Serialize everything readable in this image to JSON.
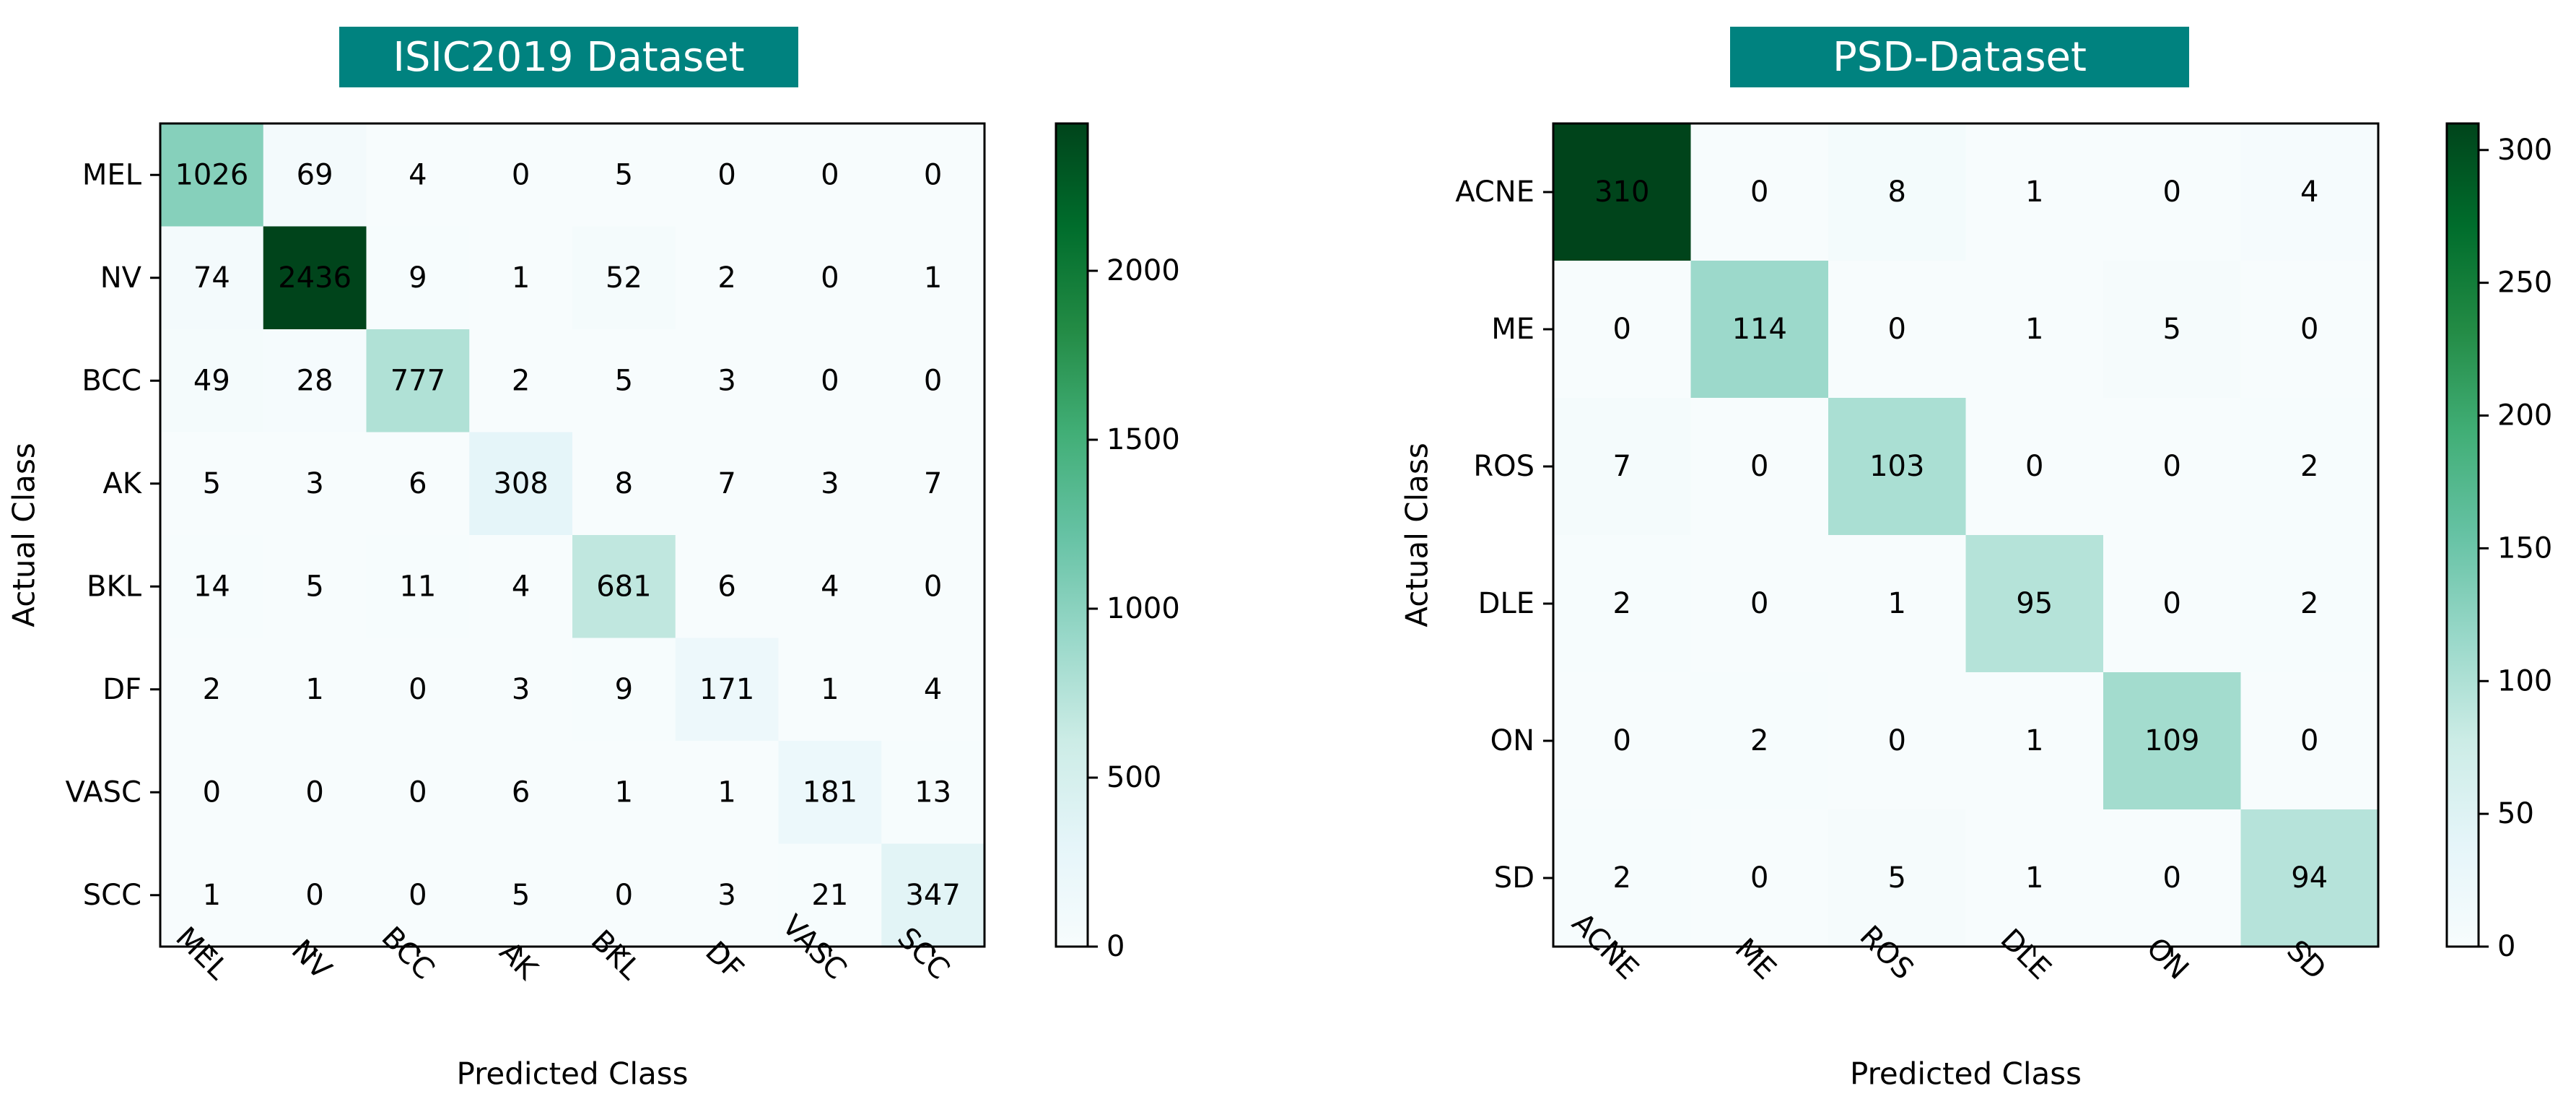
{
  "chart_data": [
    {
      "type": "heatmap",
      "title": "ISIC2019 Dataset",
      "xlabel": "Predicted Class",
      "ylabel": "Actual Class",
      "categories": [
        "MEL",
        "NV",
        "BCC",
        "AK",
        "BKL",
        "DF",
        "VASC",
        "SCC"
      ],
      "matrix": [
        [
          1026,
          69,
          4,
          0,
          5,
          0,
          0,
          0
        ],
        [
          74,
          2436,
          9,
          1,
          52,
          2,
          0,
          1
        ],
        [
          49,
          28,
          777,
          2,
          5,
          3,
          0,
          0
        ],
        [
          5,
          3,
          6,
          308,
          8,
          7,
          3,
          7
        ],
        [
          14,
          5,
          11,
          4,
          681,
          6,
          4,
          0
        ],
        [
          2,
          1,
          0,
          3,
          9,
          171,
          1,
          4
        ],
        [
          0,
          0,
          0,
          6,
          1,
          1,
          181,
          13
        ],
        [
          1,
          0,
          0,
          5,
          0,
          3,
          21,
          347
        ]
      ],
      "vmax": 2436,
      "colorbar_ticks": [
        0,
        500,
        1000,
        1500,
        2000
      ]
    },
    {
      "type": "heatmap",
      "title": "PSD-Dataset",
      "xlabel": "Predicted Class",
      "ylabel": "Actual Class",
      "categories": [
        "ACNE",
        "ME",
        "ROS",
        "DLE",
        "ON",
        "SD"
      ],
      "matrix": [
        [
          310,
          0,
          8,
          1,
          0,
          4
        ],
        [
          0,
          114,
          0,
          1,
          5,
          0
        ],
        [
          7,
          0,
          103,
          0,
          0,
          2
        ],
        [
          2,
          0,
          1,
          95,
          0,
          2
        ],
        [
          0,
          2,
          0,
          1,
          109,
          0
        ],
        [
          2,
          0,
          5,
          1,
          0,
          94
        ]
      ],
      "vmax": 310,
      "colorbar_ticks": [
        0,
        50,
        100,
        150,
        200,
        250,
        300
      ]
    }
  ],
  "colors": {
    "title_bg": "#00827f",
    "colormap": [
      "#f7fcfd",
      "#e5f5f9",
      "#ccece6",
      "#99d8c9",
      "#66c2a4",
      "#41ae76",
      "#238b45",
      "#006d2c",
      "#00441b"
    ]
  }
}
